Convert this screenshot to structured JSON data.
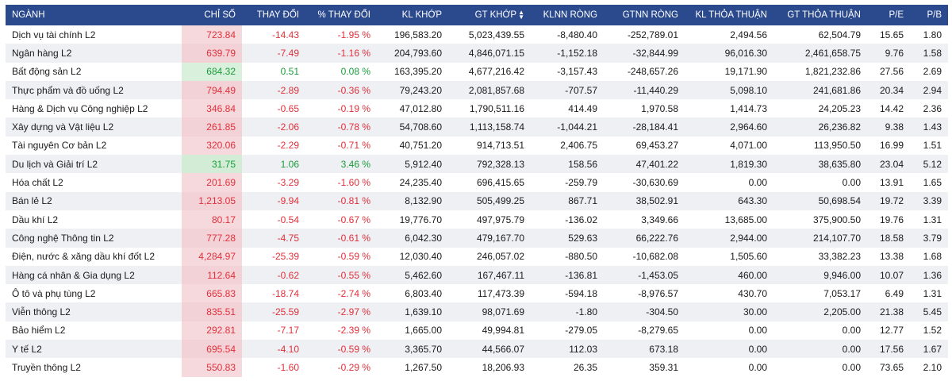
{
  "header": {
    "nganh": "NGÀNH",
    "chi_so": "CHỈ SỐ",
    "thay_doi": "THAY ĐỔI",
    "pct_thay_doi": "% THAY ĐỔI",
    "kl_khop": "KL KHỚP",
    "gt_khop": "GT KHỚP",
    "klnn_rong": "KLNN RÒNG",
    "gtnn_rong": "GTNN RÒNG",
    "kl_thoa_thuan": "KL THỎA THUẬN",
    "gt_thoa_thuan": "GT THỎA THUẬN",
    "pe": "P/E",
    "pb": "P/B"
  },
  "colors": {
    "header_bg": "#2b4a8e",
    "down": "#e0303a",
    "up": "#1a9c3a",
    "down_bg": "#f6d9dd",
    "up_bg": "#d9f0dc"
  },
  "rows": [
    {
      "name": "Dịch vụ tài chính L2",
      "index": "723.84",
      "change": "-14.43",
      "pct": "-1.95 %",
      "kl_khop": "196,583.20",
      "gt_khop": "5,023,439.55",
      "klnn": "-8,480.40",
      "gtnn": "-252,789.01",
      "kl_tt": "2,494.56",
      "gt_tt": "62,504.79",
      "pe": "15.65",
      "pb": "1.80",
      "trend": "down"
    },
    {
      "name": "Ngân hàng L2",
      "index": "639.79",
      "change": "-7.49",
      "pct": "-1.16 %",
      "kl_khop": "204,793.60",
      "gt_khop": "4,846,071.15",
      "klnn": "-1,152.18",
      "gtnn": "-32,844.99",
      "kl_tt": "96,016.30",
      "gt_tt": "2,461,658.75",
      "pe": "9.76",
      "pb": "1.58",
      "trend": "down"
    },
    {
      "name": "Bất động sản L2",
      "index": "684.32",
      "change": "0.51",
      "pct": "0.08 %",
      "kl_khop": "163,395.20",
      "gt_khop": "4,677,216.42",
      "klnn": "-3,157.43",
      "gtnn": "-248,657.26",
      "kl_tt": "19,171.90",
      "gt_tt": "1,821,232.86",
      "pe": "27.56",
      "pb": "2.69",
      "trend": "up"
    },
    {
      "name": "Thực phẩm và đồ uống L2",
      "index": "794.49",
      "change": "-2.89",
      "pct": "-0.36 %",
      "kl_khop": "79,243.20",
      "gt_khop": "2,081,857.68",
      "klnn": "-707.57",
      "gtnn": "-11,440.29",
      "kl_tt": "5,098.10",
      "gt_tt": "241,681.86",
      "pe": "20.34",
      "pb": "2.94",
      "trend": "down"
    },
    {
      "name": "Hàng & Dịch vụ Công nghiệp L2",
      "index": "346.84",
      "change": "-0.65",
      "pct": "-0.19 %",
      "kl_khop": "47,012.80",
      "gt_khop": "1,790,511.16",
      "klnn": "414.49",
      "gtnn": "1,970.58",
      "kl_tt": "1,414.73",
      "gt_tt": "24,205.23",
      "pe": "14.42",
      "pb": "2.36",
      "trend": "down"
    },
    {
      "name": "Xây dựng và Vật liệu L2",
      "index": "261.85",
      "change": "-2.06",
      "pct": "-0.78 %",
      "kl_khop": "54,708.60",
      "gt_khop": "1,113,158.74",
      "klnn": "-1,044.21",
      "gtnn": "-28,184.41",
      "kl_tt": "2,964.60",
      "gt_tt": "26,236.82",
      "pe": "9.38",
      "pb": "1.43",
      "trend": "down"
    },
    {
      "name": "Tài nguyên Cơ bản L2",
      "index": "320.06",
      "change": "-2.29",
      "pct": "-0.71 %",
      "kl_khop": "40,751.20",
      "gt_khop": "914,713.51",
      "klnn": "2,406.75",
      "gtnn": "69,453.27",
      "kl_tt": "4,071.00",
      "gt_tt": "113,950.50",
      "pe": "16.99",
      "pb": "1.51",
      "trend": "down"
    },
    {
      "name": "Du lịch và Giải trí L2",
      "index": "31.75",
      "change": "1.06",
      "pct": "3.46 %",
      "kl_khop": "5,912.40",
      "gt_khop": "792,328.13",
      "klnn": "158.56",
      "gtnn": "47,401.22",
      "kl_tt": "1,819.30",
      "gt_tt": "38,635.80",
      "pe": "23.04",
      "pb": "5.12",
      "trend": "up"
    },
    {
      "name": "Hóa chất L2",
      "index": "201.69",
      "change": "-3.29",
      "pct": "-1.60 %",
      "kl_khop": "24,235.40",
      "gt_khop": "696,415.65",
      "klnn": "-259.79",
      "gtnn": "-30,630.69",
      "kl_tt": "0.00",
      "gt_tt": "0.00",
      "pe": "13.91",
      "pb": "1.65",
      "trend": "down"
    },
    {
      "name": "Bán lẻ L2",
      "index": "1,213.05",
      "change": "-9.94",
      "pct": "-0.81 %",
      "kl_khop": "8,132.90",
      "gt_khop": "505,499.25",
      "klnn": "867.71",
      "gtnn": "38,502.91",
      "kl_tt": "643.30",
      "gt_tt": "50,698.54",
      "pe": "19.72",
      "pb": "3.39",
      "trend": "down"
    },
    {
      "name": "Dầu khí L2",
      "index": "80.17",
      "change": "-0.54",
      "pct": "-0.67 %",
      "kl_khop": "19,776.70",
      "gt_khop": "497,975.79",
      "klnn": "-136.02",
      "gtnn": "3,349.66",
      "kl_tt": "13,685.00",
      "gt_tt": "375,900.50",
      "pe": "19.76",
      "pb": "1.31",
      "trend": "down"
    },
    {
      "name": "Công nghệ Thông tin L2",
      "index": "777.28",
      "change": "-4.75",
      "pct": "-0.61 %",
      "kl_khop": "6,042.30",
      "gt_khop": "479,167.70",
      "klnn": "529.63",
      "gtnn": "66,222.76",
      "kl_tt": "2,944.00",
      "gt_tt": "214,107.70",
      "pe": "18.58",
      "pb": "3.79",
      "trend": "down"
    },
    {
      "name": "Điện, nước & xăng dầu khí đốt L2",
      "index": "4,284.97",
      "change": "-25.39",
      "pct": "-0.59 %",
      "kl_khop": "12,030.40",
      "gt_khop": "246,057.02",
      "klnn": "-880.50",
      "gtnn": "-10,682.08",
      "kl_tt": "1,505.60",
      "gt_tt": "33,382.23",
      "pe": "13.38",
      "pb": "1.68",
      "trend": "down"
    },
    {
      "name": "Hàng cá nhân & Gia dụng L2",
      "index": "112.64",
      "change": "-0.62",
      "pct": "-0.55 %",
      "kl_khop": "5,462.60",
      "gt_khop": "167,467.11",
      "klnn": "-136.81",
      "gtnn": "-1,453.05",
      "kl_tt": "460.00",
      "gt_tt": "9,946.00",
      "pe": "10.07",
      "pb": "1.36",
      "trend": "down"
    },
    {
      "name": "Ô tô và phụ tùng L2",
      "index": "665.83",
      "change": "-18.74",
      "pct": "-2.74 %",
      "kl_khop": "6,803.40",
      "gt_khop": "117,473.39",
      "klnn": "-594.18",
      "gtnn": "-8,976.57",
      "kl_tt": "430.70",
      "gt_tt": "7,053.17",
      "pe": "6.49",
      "pb": "1.31",
      "trend": "down"
    },
    {
      "name": "Viễn thông L2",
      "index": "835.51",
      "change": "-25.59",
      "pct": "-2.97 %",
      "kl_khop": "1,639.10",
      "gt_khop": "98,071.69",
      "klnn": "-1.80",
      "gtnn": "-304.50",
      "kl_tt": "30.00",
      "gt_tt": "2,205.00",
      "pe": "21.38",
      "pb": "5.45",
      "trend": "down"
    },
    {
      "name": "Bảo hiểm L2",
      "index": "292.81",
      "change": "-7.17",
      "pct": "-2.39 %",
      "kl_khop": "1,665.00",
      "gt_khop": "49,994.81",
      "klnn": "-279.05",
      "gtnn": "-8,279.65",
      "kl_tt": "0.00",
      "gt_tt": "0.00",
      "pe": "12.77",
      "pb": "1.52",
      "trend": "down"
    },
    {
      "name": "Y tế L2",
      "index": "695.54",
      "change": "-4.10",
      "pct": "-0.59 %",
      "kl_khop": "3,365.70",
      "gt_khop": "44,566.07",
      "klnn": "112.03",
      "gtnn": "673.18",
      "kl_tt": "0.00",
      "gt_tt": "0.00",
      "pe": "17.56",
      "pb": "1.67",
      "trend": "down"
    },
    {
      "name": "Truyền thông L2",
      "index": "550.83",
      "change": "-1.60",
      "pct": "-0.29 %",
      "kl_khop": "1,267.50",
      "gt_khop": "18,206.93",
      "klnn": "26.35",
      "gtnn": "359.31",
      "kl_tt": "0.00",
      "gt_tt": "0.00",
      "pe": "73.65",
      "pb": "2.10",
      "trend": "down"
    }
  ]
}
